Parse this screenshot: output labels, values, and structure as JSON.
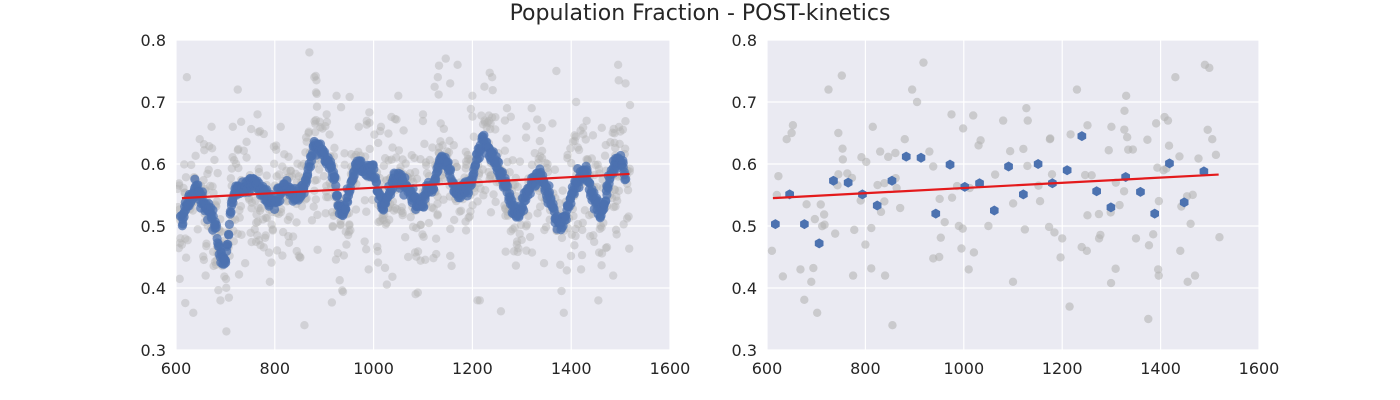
{
  "title": "Population Fraction - POST-kinetics",
  "colors": {
    "background": "#EAEAF2",
    "grid": "#FFFFFF",
    "raw": "#B4B4B4",
    "smooth": "#4C72B0",
    "fit": "#E41A1C"
  },
  "chart_data": [
    {
      "type": "scatter",
      "title": "",
      "xlabel": "",
      "ylabel": "",
      "xlim": [
        600,
        1600
      ],
      "ylim": [
        0.3,
        0.8
      ],
      "xticks": [
        "600",
        "800",
        "1000",
        "1200",
        "1400",
        "1600"
      ],
      "yticks": [
        "0.3",
        "0.4",
        "0.5",
        "0.6",
        "0.7",
        "0.8"
      ],
      "grid": true,
      "series": [
        {
          "role": "raw",
          "style": "gray translucent points",
          "x_range": [
            600,
            1520
          ],
          "count": 900,
          "values": [
            [
              612,
              0.47
            ],
            [
              622,
              0.74
            ],
            [
              635,
              0.36
            ],
            [
              648,
              0.64
            ],
            [
              660,
              0.42
            ],
            [
              672,
              0.66
            ],
            [
              690,
              0.38
            ],
            [
              702,
              0.33
            ],
            [
              715,
              0.66
            ],
            [
              725,
              0.72
            ],
            [
              740,
              0.44
            ],
            [
              765,
              0.68
            ],
            [
              790,
              0.41
            ],
            [
              812,
              0.66
            ],
            [
              835,
              0.58
            ],
            [
              860,
              0.34
            ],
            [
              870,
              0.78
            ],
            [
              880,
              0.74
            ],
            [
              905,
              0.68
            ],
            [
              925,
              0.71
            ],
            [
              945,
              0.47
            ],
            [
              970,
              0.66
            ],
            [
              990,
              0.43
            ],
            [
              1015,
              0.66
            ],
            [
              1050,
              0.71
            ],
            [
              1070,
              0.45
            ],
            [
              1085,
              0.39
            ],
            [
              1100,
              0.68
            ],
            [
              1130,
              0.74
            ],
            [
              1155,
              0.73
            ],
            [
              1170,
              0.76
            ],
            [
              1200,
              0.71
            ],
            [
              1215,
              0.38
            ],
            [
              1240,
              0.74
            ],
            [
              1270,
              0.69
            ],
            [
              1290,
              0.47
            ],
            [
              1320,
              0.69
            ],
            [
              1345,
              0.44
            ],
            [
              1370,
              0.75
            ],
            [
              1385,
              0.36
            ],
            [
              1410,
              0.7
            ],
            [
              1420,
              0.43
            ],
            [
              1455,
              0.38
            ],
            [
              1485,
              0.42
            ],
            [
              1495,
              0.76
            ],
            [
              1510,
              0.73
            ]
          ]
        },
        {
          "role": "smoothed",
          "style": "blue points",
          "count": 900,
          "x": [
            610,
            620,
            630,
            640,
            650,
            660,
            670,
            680,
            690,
            700,
            710,
            720,
            730,
            740,
            750,
            760,
            770,
            780,
            790,
            800,
            810,
            820,
            830,
            840,
            850,
            860,
            870,
            880,
            890,
            900,
            910,
            920,
            930,
            940,
            950,
            960,
            970,
            980,
            990,
            1000,
            1010,
            1020,
            1030,
            1040,
            1050,
            1060,
            1070,
            1080,
            1090,
            1100,
            1110,
            1120,
            1130,
            1140,
            1150,
            1160,
            1170,
            1180,
            1190,
            1200,
            1210,
            1220,
            1230,
            1240,
            1250,
            1260,
            1270,
            1280,
            1290,
            1300,
            1310,
            1320,
            1330,
            1340,
            1350,
            1360,
            1370,
            1380,
            1390,
            1400,
            1410,
            1420,
            1430,
            1440,
            1450,
            1460,
            1470,
            1480,
            1490,
            1500,
            1510
          ],
          "y": [
            0.51,
            0.53,
            0.55,
            0.56,
            0.54,
            0.53,
            0.52,
            0.5,
            0.45,
            0.44,
            0.52,
            0.56,
            0.56,
            0.56,
            0.57,
            0.57,
            0.56,
            0.55,
            0.54,
            0.54,
            0.55,
            0.56,
            0.56,
            0.55,
            0.55,
            0.56,
            0.6,
            0.63,
            0.63,
            0.61,
            0.6,
            0.58,
            0.53,
            0.52,
            0.55,
            0.59,
            0.6,
            0.59,
            0.59,
            0.59,
            0.55,
            0.53,
            0.55,
            0.57,
            0.58,
            0.57,
            0.56,
            0.55,
            0.53,
            0.54,
            0.57,
            0.56,
            0.59,
            0.61,
            0.6,
            0.57,
            0.55,
            0.56,
            0.56,
            0.58,
            0.61,
            0.64,
            0.63,
            0.61,
            0.6,
            0.58,
            0.56,
            0.53,
            0.52,
            0.53,
            0.55,
            0.57,
            0.58,
            0.58,
            0.56,
            0.54,
            0.51,
            0.5,
            0.52,
            0.55,
            0.57,
            0.58,
            0.59,
            0.56,
            0.54,
            0.52,
            0.55,
            0.58,
            0.6,
            0.61,
            0.58
          ]
        },
        {
          "role": "linear-fit",
          "style": "red line",
          "x": [
            612,
            1518
          ],
          "y": [
            0.545,
            0.584
          ]
        }
      ]
    },
    {
      "type": "scatter",
      "title": "",
      "xlabel": "",
      "ylabel": "",
      "xlim": [
        600,
        1600
      ],
      "ylim": [
        0.3,
        0.8
      ],
      "xticks": [
        "600",
        "800",
        "1000",
        "1200",
        "1400",
        "1600"
      ],
      "yticks": [
        "0.3",
        "0.4",
        "0.5",
        "0.6",
        "0.7",
        "0.8"
      ],
      "grid": true,
      "series": [
        {
          "role": "raw",
          "style": "gray points",
          "x_range": [
            600,
            1520
          ],
          "count": 150,
          "values": [
            [
              610,
              0.46
            ],
            [
              620,
              0.55
            ],
            [
              640,
              0.64
            ],
            [
              650,
              0.65
            ],
            [
              668,
              0.43
            ],
            [
              690,
              0.41
            ],
            [
              702,
              0.36
            ],
            [
              725,
              0.72
            ],
            [
              745,
              0.65
            ],
            [
              775,
              0.42
            ],
            [
              800,
              0.47
            ],
            [
              815,
              0.66
            ],
            [
              830,
              0.62
            ],
            [
              840,
              0.42
            ],
            [
              855,
              0.34
            ],
            [
              880,
              0.64
            ],
            [
              895,
              0.72
            ],
            [
              905,
              0.7
            ],
            [
              930,
              0.62
            ],
            [
              950,
              0.45
            ],
            [
              975,
              0.68
            ],
            [
              990,
              0.5
            ],
            [
              1010,
              0.43
            ],
            [
              1030,
              0.63
            ],
            [
              1050,
              0.5
            ],
            [
              1080,
              0.67
            ],
            [
              1100,
              0.41
            ],
            [
              1130,
              0.67
            ],
            [
              1155,
              0.54
            ],
            [
              1175,
              0.64
            ],
            [
              1200,
              0.48
            ],
            [
              1215,
              0.37
            ],
            [
              1230,
              0.72
            ],
            [
              1250,
              0.46
            ],
            [
              1275,
              0.48
            ],
            [
              1300,
              0.66
            ],
            [
              1330,
              0.71
            ],
            [
              1350,
              0.48
            ],
            [
              1375,
              0.35
            ],
            [
              1395,
              0.43
            ],
            [
              1415,
              0.67
            ],
            [
              1430,
              0.74
            ],
            [
              1440,
              0.46
            ],
            [
              1455,
              0.41
            ],
            [
              1470,
              0.42
            ],
            [
              1490,
              0.76
            ],
            [
              1505,
              0.64
            ]
          ]
        },
        {
          "role": "binned",
          "style": "blue hexagons",
          "x": [
            617,
            646,
            676,
            706,
            735,
            765,
            794,
            824,
            854,
            883,
            913,
            943,
            972,
            1002,
            1032,
            1062,
            1091,
            1121,
            1151,
            1180,
            1210,
            1240,
            1270,
            1299,
            1329,
            1359,
            1388,
            1418,
            1448,
            1488
          ],
          "y": [
            0.503,
            0.551,
            0.503,
            0.472,
            0.573,
            0.57,
            0.551,
            0.533,
            0.573,
            0.612,
            0.61,
            0.52,
            0.599,
            0.563,
            0.569,
            0.525,
            0.596,
            0.551,
            0.6,
            0.569,
            0.59,
            0.645,
            0.556,
            0.53,
            0.579,
            0.555,
            0.52,
            0.601,
            0.538,
            0.588
          ]
        },
        {
          "role": "linear-fit",
          "style": "red line",
          "x": [
            612,
            1518
          ],
          "y": [
            0.545,
            0.583
          ]
        }
      ]
    }
  ]
}
